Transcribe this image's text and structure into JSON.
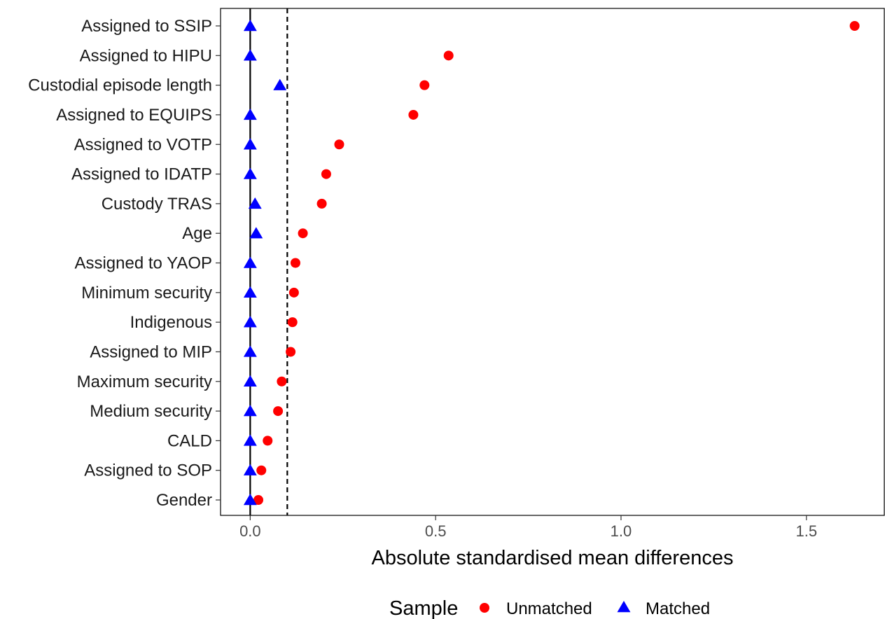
{
  "chart_data": {
    "type": "scatter",
    "categories": [
      "Assigned to SSIP",
      "Assigned to HIPU",
      "Custodial episode length",
      "Assigned to EQUIPS",
      "Assigned to VOTP",
      "Assigned to IDATP",
      "Custody TRAS",
      "Age",
      "Assigned to YAOP",
      "Minimum security",
      "Indigenous",
      "Assigned to MIP",
      "Maximum security",
      "Medium security",
      "CALD",
      "Assigned to SOP",
      "Gender"
    ],
    "series": [
      {
        "name": "Unmatched",
        "color": "#ff0000",
        "marker": "circle",
        "values": [
          1.63,
          0.535,
          0.47,
          0.44,
          0.24,
          0.205,
          0.193,
          0.142,
          0.122,
          0.118,
          0.114,
          0.109,
          0.085,
          0.075,
          0.047,
          0.03,
          0.022
        ]
      },
      {
        "name": "Matched",
        "color": "#0000ff",
        "marker": "triangle",
        "values": [
          0.0,
          0.0,
          0.08,
          0.0,
          0.0,
          0.0,
          0.013,
          0.016,
          0.0,
          0.0,
          0.0,
          0.0,
          0.0,
          0.0,
          0.0,
          0.0,
          0.0
        ]
      }
    ],
    "xlabel": "Absolute standardised mean differences",
    "ylabel": "",
    "xlim": [
      -0.08,
      1.71
    ],
    "xticks": [
      0.0,
      0.5,
      1.0,
      1.5
    ],
    "xtick_labels": [
      "0.0",
      "0.5",
      "1.0",
      "1.5"
    ],
    "reference_lines": [
      {
        "x": 0.0,
        "style": "solid"
      },
      {
        "x": 0.1,
        "style": "dashed"
      }
    ],
    "grid": false,
    "legend": {
      "title": "Sample",
      "placement": "bottom",
      "entries": [
        "Unmatched",
        "Matched"
      ]
    }
  }
}
